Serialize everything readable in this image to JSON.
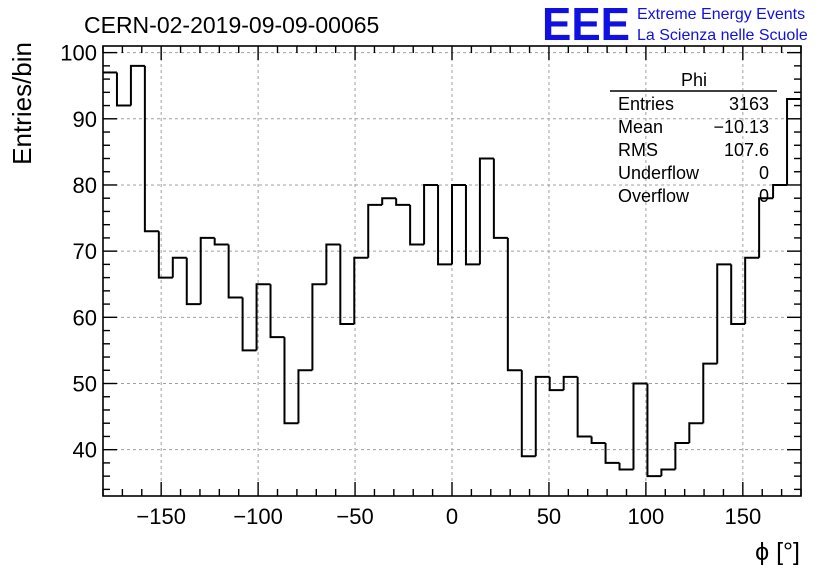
{
  "chart_data": {
    "type": "histogram",
    "title": "CERN-02-2019-09-09-00065",
    "xlabel": "ϕ [°]",
    "ylabel": "Entries/bin",
    "xlim": [
      -180,
      180
    ],
    "ylim": [
      33,
      101
    ],
    "bin_width": 7.2,
    "x_ticks": [
      -150,
      -100,
      -50,
      0,
      50,
      100,
      150
    ],
    "x_tick_labels": [
      "−150",
      "−100",
      "−50",
      "0",
      "50",
      "100",
      "150"
    ],
    "y_ticks": [
      40,
      50,
      60,
      70,
      80,
      90,
      100
    ],
    "y_tick_labels": [
      "40",
      "50",
      "60",
      "70",
      "80",
      "90",
      "100"
    ],
    "grid": true,
    "values": [
      97,
      92,
      98,
      73,
      66,
      69,
      62,
      72,
      71,
      63,
      55,
      65,
      57,
      44,
      52,
      65,
      71,
      59,
      69,
      77,
      78,
      77,
      71,
      80,
      68,
      80,
      68,
      84,
      72,
      52,
      39,
      51,
      49,
      51,
      42,
      41,
      38,
      37,
      50,
      36,
      37,
      41,
      44,
      53,
      68,
      59,
      69,
      78,
      80,
      93
    ]
  },
  "stats_box": {
    "title": "Phi",
    "rows": [
      {
        "label": "Entries",
        "value": "3163"
      },
      {
        "label": "Mean",
        "value": "−10.13"
      },
      {
        "label": "RMS",
        "value": "107.6"
      },
      {
        "label": "Underflow",
        "value": "0"
      },
      {
        "label": "Overflow",
        "value": "0"
      }
    ]
  },
  "logo": {
    "mark": "EEE",
    "line1": "Extreme Energy Events",
    "line2": "La Scienza nelle Scuole",
    "color": "#1010e0"
  }
}
